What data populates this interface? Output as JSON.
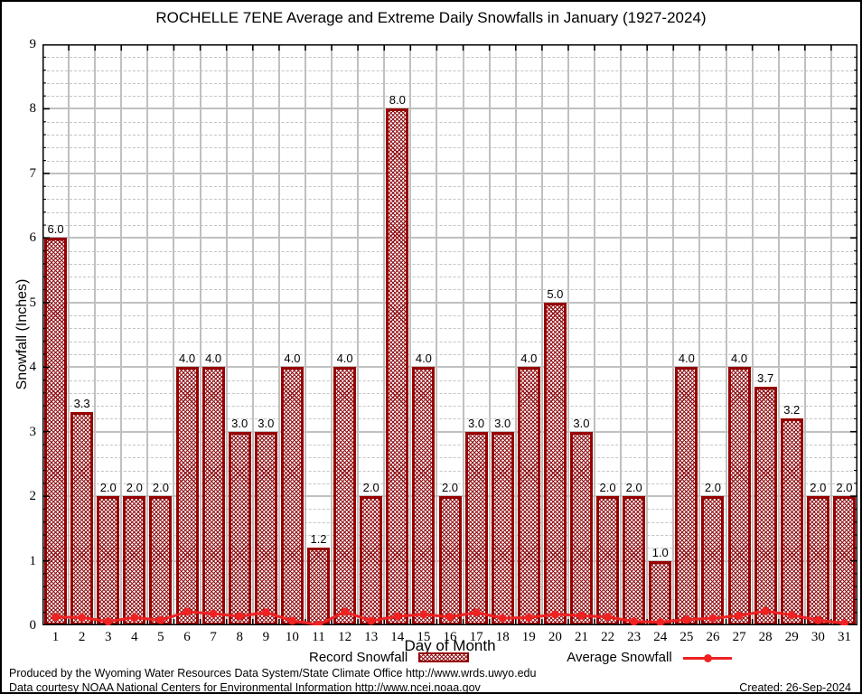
{
  "title": "ROCHELLE 7ENE Average and Extreme Daily Snowfalls in January (1927-2024)",
  "y_axis": {
    "label": "Snowfall (Inches)",
    "ticks": [
      0,
      1,
      2,
      3,
      4,
      5,
      6,
      7,
      8,
      9
    ]
  },
  "x_axis": {
    "label": "Day of Month"
  },
  "legend": {
    "record_label": "Record Snowfall",
    "average_label": "Average Snowfall"
  },
  "footer": {
    "line1": "Produced by the Wyoming Water Resources Data System/State Climate Office http://www.wrds.uwyo.edu",
    "line2": "Data courtesy NOAA National Centers for Environmental Information http://www.ncei.noaa.gov",
    "created": "Created: 26-Sep-2024"
  },
  "colors": {
    "bar_border": "#970000",
    "bar_hatch": "#8f1116",
    "average_line": "#ee2222",
    "grid_major": "#c0c0c0",
    "grid_minor": "#c4c4c4",
    "frame": "#000000"
  },
  "chart_data": {
    "type": "bar",
    "title": "ROCHELLE 7ENE Average and Extreme Daily Snowfalls in January (1927-2024)",
    "x": [
      1,
      2,
      3,
      4,
      5,
      6,
      7,
      8,
      9,
      10,
      11,
      12,
      13,
      14,
      15,
      16,
      17,
      18,
      19,
      20,
      21,
      22,
      23,
      24,
      25,
      26,
      27,
      28,
      29,
      30,
      31
    ],
    "series": [
      {
        "name": "Record Snowfall",
        "type": "bar",
        "values": [
          6.0,
          3.3,
          2.0,
          2.0,
          2.0,
          4.0,
          4.0,
          3.0,
          3.0,
          4.0,
          1.2,
          4.0,
          2.0,
          8.0,
          4.0,
          2.0,
          3.0,
          3.0,
          4.0,
          5.0,
          3.0,
          2.0,
          2.0,
          1.0,
          4.0,
          2.0,
          4.0,
          3.7,
          3.2,
          2.0,
          2.0
        ]
      },
      {
        "name": "Average Snowfall",
        "type": "line",
        "values": [
          0.13,
          0.12,
          0.06,
          0.12,
          0.08,
          0.21,
          0.18,
          0.14,
          0.2,
          0.07,
          0.01,
          0.21,
          0.07,
          0.14,
          0.17,
          0.13,
          0.2,
          0.11,
          0.12,
          0.17,
          0.15,
          0.13,
          0.06,
          0.05,
          0.09,
          0.11,
          0.15,
          0.22,
          0.16,
          0.08,
          0.03
        ]
      }
    ],
    "xlabel": "Day of Month",
    "ylabel": "Snowfall (Inches)",
    "ylim": [
      0,
      9
    ],
    "y_major_step": 1,
    "y_minor_step": 0.2,
    "grid": "major solid, minor dashed",
    "bar_value_labels": true,
    "legend_position": "bottom"
  }
}
